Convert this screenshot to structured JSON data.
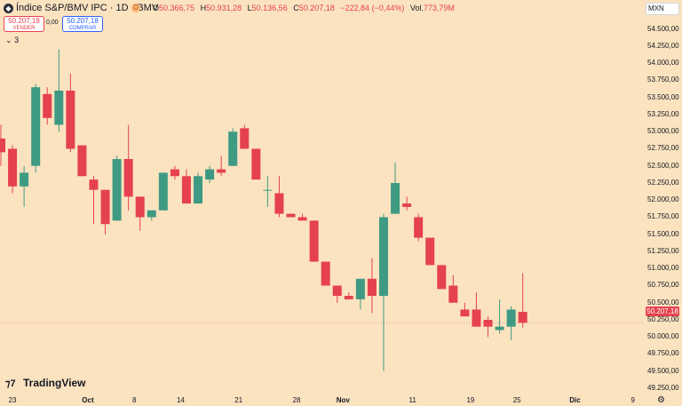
{
  "header": {
    "symbol_icon": "chart-logo-icon",
    "title": "Índice S&P/BMV IPC · 1D · BMV",
    "status_icon": "delayed-data-icon",
    "status_letter": "D",
    "ohlc": {
      "o_label": "O",
      "o": "50.366,75",
      "h_label": "H",
      "h": "50.931,28",
      "l_label": "L",
      "l": "50.136,56",
      "c_label": "C",
      "c": "50.207,18",
      "change": "−222,84 (−0,44%)",
      "vol_label": "Vol.",
      "vol": "773,79M"
    }
  },
  "trade": {
    "sell_price": "50.207,18",
    "sell_label": "VENDER",
    "spread": "0,00",
    "buy_price": "50.207,18",
    "buy_label": "COMPRAR"
  },
  "indicators_collapse": {
    "icon": "chevron-down-icon",
    "count": "3"
  },
  "currency": "MXN",
  "last_price_label": "50.207,18",
  "colors": {
    "up": "#3f9a83",
    "down": "#e5414e",
    "background": "#fbe3c0",
    "last_line": "#f08a8a"
  },
  "brand": {
    "logo_icon": "tradingview-logo-icon",
    "text": "TradingView"
  },
  "settings_icon": "gear-icon",
  "chart_data": {
    "type": "candlestick",
    "title": "Índice S&P/BMV IPC · 1D · BMV",
    "ylim": [
      49250,
      54600
    ],
    "y_ticks": [
      "49.250,00",
      "49.500,00",
      "49.750,00",
      "50.000,00",
      "50.250,00",
      "50.500,00",
      "50.750,00",
      "51.000,00",
      "51.250,00",
      "51.500,00",
      "51.750,00",
      "52.000,00",
      "52.250,00",
      "52.500,00",
      "52.750,00",
      "53.000,00",
      "53.250,00",
      "53.500,00",
      "53.750,00",
      "54.000,00",
      "54.250,00",
      "54.500,00"
    ],
    "y_tick_values": [
      49250,
      49500,
      49750,
      50000,
      50250,
      50500,
      50750,
      51000,
      51250,
      51500,
      51750,
      52000,
      52250,
      52500,
      52750,
      53000,
      53250,
      53500,
      53750,
      54000,
      54250,
      54500
    ],
    "x_labels": [
      {
        "text": "23",
        "index": 1
      },
      {
        "text": "Oct",
        "index": 7.5,
        "month": true
      },
      {
        "text": "8",
        "index": 11.5
      },
      {
        "text": "14",
        "index": 15.5
      },
      {
        "text": "21",
        "index": 20.5
      },
      {
        "text": "28",
        "index": 25.5
      },
      {
        "text": "Nov",
        "index": 29.5,
        "month": true
      },
      {
        "text": "11",
        "index": 35.5
      },
      {
        "text": "19",
        "index": 40.5
      },
      {
        "text": "25",
        "index": 44.5
      },
      {
        "text": "Dic",
        "index": 49.5,
        "month": true
      },
      {
        "text": "9",
        "index": 54.5
      }
    ],
    "candles": [
      {
        "o": 52900,
        "h": 53100,
        "l": 52500,
        "c": 52700
      },
      {
        "o": 52750,
        "h": 52800,
        "l": 52100,
        "c": 52200
      },
      {
        "o": 52200,
        "h": 52500,
        "l": 51900,
        "c": 52400
      },
      {
        "o": 52500,
        "h": 53700,
        "l": 52400,
        "c": 53650
      },
      {
        "o": 53550,
        "h": 53650,
        "l": 53100,
        "c": 53200
      },
      {
        "o": 53100,
        "h": 54200,
        "l": 53000,
        "c": 53600
      },
      {
        "o": 53600,
        "h": 53850,
        "l": 52700,
        "c": 52750
      },
      {
        "o": 52800,
        "h": 52800,
        "l": 52350,
        "c": 52350
      },
      {
        "o": 52300,
        "h": 52350,
        "l": 51650,
        "c": 52150
      },
      {
        "o": 52150,
        "h": 52150,
        "l": 51500,
        "c": 51650
      },
      {
        "o": 51700,
        "h": 52650,
        "l": 51750,
        "c": 52600
      },
      {
        "o": 52600,
        "h": 53100,
        "l": 51850,
        "c": 52050
      },
      {
        "o": 52050,
        "h": 52050,
        "l": 51550,
        "c": 51750
      },
      {
        "o": 51750,
        "h": 51850,
        "l": 51700,
        "c": 51850
      },
      {
        "o": 51850,
        "h": 52400,
        "l": 51850,
        "c": 52400
      },
      {
        "o": 52450,
        "h": 52500,
        "l": 52300,
        "c": 52350
      },
      {
        "o": 52350,
        "h": 52450,
        "l": 51950,
        "c": 51950
      },
      {
        "o": 51950,
        "h": 52400,
        "l": 51950,
        "c": 52350
      },
      {
        "o": 52300,
        "h": 52500,
        "l": 52250,
        "c": 52450
      },
      {
        "o": 52450,
        "h": 52650,
        "l": 52350,
        "c": 52400
      },
      {
        "o": 52500,
        "h": 53050,
        "l": 52500,
        "c": 53000
      },
      {
        "o": 53050,
        "h": 53100,
        "l": 52750,
        "c": 52750
      },
      {
        "o": 52750,
        "h": 52750,
        "l": 52300,
        "c": 52300
      },
      {
        "o": 52150,
        "h": 52350,
        "l": 51900,
        "c": 52150
      },
      {
        "o": 52100,
        "h": 52350,
        "l": 51750,
        "c": 51800
      },
      {
        "o": 51800,
        "h": 51800,
        "l": 51750,
        "c": 51750
      },
      {
        "o": 51750,
        "h": 51800,
        "l": 51700,
        "c": 51700
      },
      {
        "o": 51700,
        "h": 51700,
        "l": 51100,
        "c": 51100
      },
      {
        "o": 51100,
        "h": 51100,
        "l": 50750,
        "c": 50750
      },
      {
        "o": 50750,
        "h": 50750,
        "l": 50500,
        "c": 50600
      },
      {
        "o": 50600,
        "h": 50650,
        "l": 50550,
        "c": 50550
      },
      {
        "o": 50550,
        "h": 50850,
        "l": 50400,
        "c": 50850
      },
      {
        "o": 50850,
        "h": 51150,
        "l": 50350,
        "c": 50600
      },
      {
        "o": 50600,
        "h": 51800,
        "l": 49500,
        "c": 51750
      },
      {
        "o": 51800,
        "h": 52550,
        "l": 51800,
        "c": 52250
      },
      {
        "o": 51950,
        "h": 52050,
        "l": 51850,
        "c": 51900
      },
      {
        "o": 51750,
        "h": 51800,
        "l": 51400,
        "c": 51450
      },
      {
        "o": 51450,
        "h": 51450,
        "l": 51050,
        "c": 51050
      },
      {
        "o": 51050,
        "h": 51050,
        "l": 50700,
        "c": 50700
      },
      {
        "o": 50750,
        "h": 50900,
        "l": 50500,
        "c": 50500
      },
      {
        "o": 50400,
        "h": 50500,
        "l": 50300,
        "c": 50300
      },
      {
        "o": 50400,
        "h": 50650,
        "l": 50150,
        "c": 50150
      },
      {
        "o": 50250,
        "h": 50300,
        "l": 50000,
        "c": 50150
      },
      {
        "o": 50100,
        "h": 50550,
        "l": 50050,
        "c": 50150
      },
      {
        "o": 50150,
        "h": 50450,
        "l": 49950,
        "c": 50400
      },
      {
        "o": 50366,
        "h": 50931,
        "l": 50136,
        "c": 50207
      }
    ]
  }
}
